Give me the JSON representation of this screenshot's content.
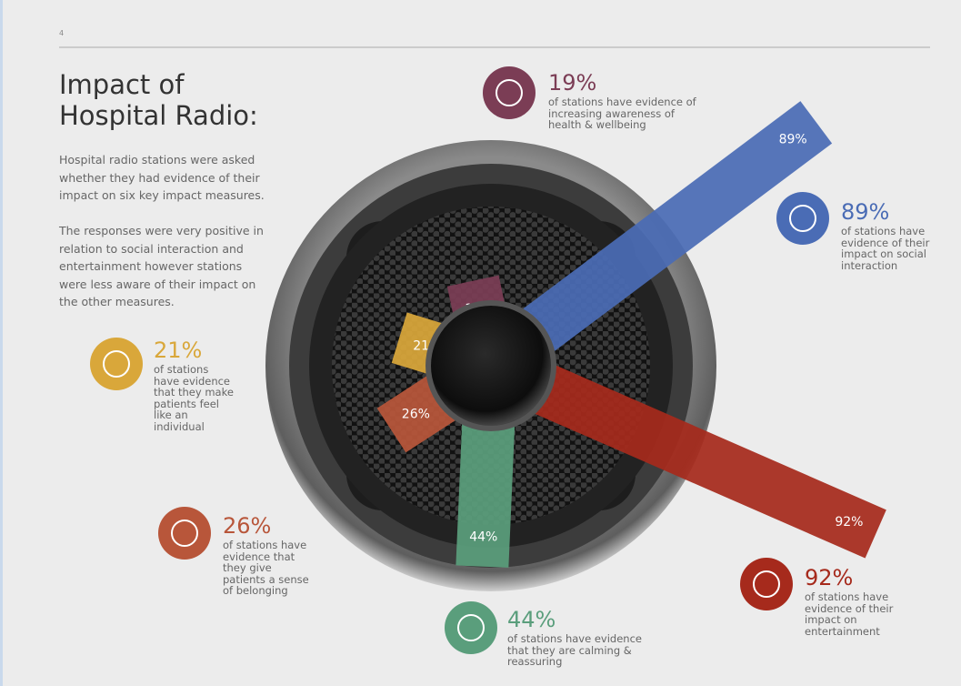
{
  "chart_data": {
    "type": "radial_bar",
    "page_number": "4",
    "title": "Impact of Hospital Radio:",
    "description": [
      "Hospital radio stations were asked whether they had evidence of their impact on six key impact measures.",
      "The responses were very positive in relation to social interaction and entertainment however stations were less aware of their impact on the other measures."
    ],
    "categories": [
      "of stations have evidence of increasing awareness of health & wellbeing",
      "of stations have evidence of their impact on social interaction",
      "of stations have evidence of their impact on entertainment",
      "of stations have evidence that they are calming & reassuring",
      "of stations have evidence that they give patients a sense of belonging",
      "of stations have evidence that they make patients feel like an individual"
    ],
    "values": [
      19,
      89,
      92,
      44,
      26,
      21
    ],
    "value_labels": [
      "19%",
      "89%",
      "92%",
      "44%",
      "26%",
      "21%"
    ],
    "colors": [
      "#7b3d55",
      "#4a6cb5",
      "#a62a1c",
      "#5a9e7c",
      "#b8563a",
      "#d9a73a"
    ]
  }
}
